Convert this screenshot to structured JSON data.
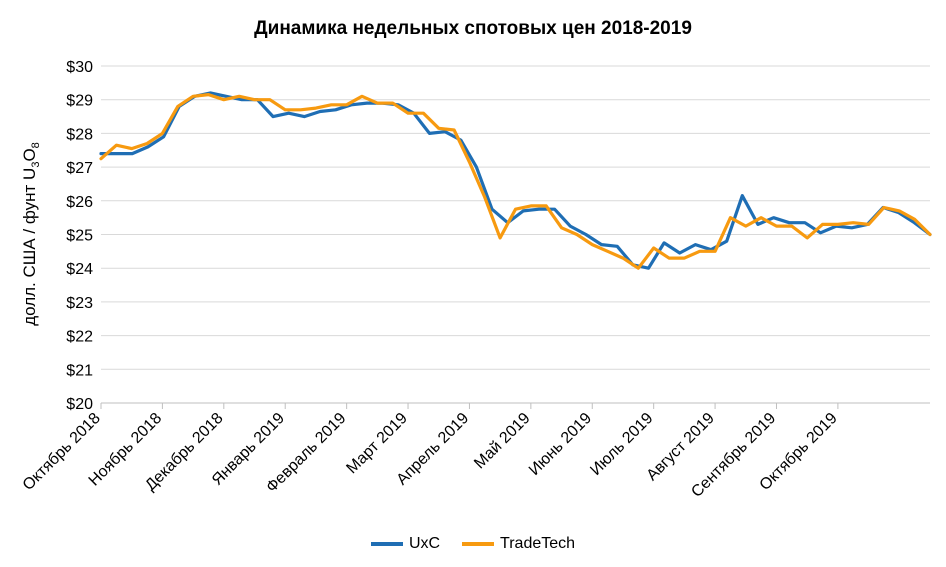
{
  "chart_data": {
    "type": "line",
    "title": "Динамика недельных спотовых цен 2018-2019",
    "ylabel": "долл. США / фунт U",
    "ylabel_sub1": "3",
    "ylabel_mid": "O",
    "ylabel_sub2": "8",
    "ylim": [
      20,
      30
    ],
    "yticks": [
      "$20",
      "$21",
      "$22",
      "$23",
      "$24",
      "$25",
      "$26",
      "$27",
      "$28",
      "$29",
      "$30"
    ],
    "xtick_labels": [
      "Октябрь 2018",
      "Ноябрь 2018",
      "Декабрь 2018",
      "Январь 2019",
      "Февраль 2019",
      "Март 2019",
      "Апрель 2019",
      "Май 2019",
      "Июнь 2019",
      "Июль 2019",
      "Август 2019",
      "Сентябрь 2019",
      "Октябрь 2019"
    ],
    "xtick_weeks": [
      0,
      4,
      8,
      12,
      16,
      20,
      24,
      28,
      32,
      36,
      40,
      44,
      48
    ],
    "grid": true,
    "legend_position": "bottom",
    "series": [
      {
        "name": "UxC",
        "color": "#1F6EB4",
        "values": [
          27.4,
          27.4,
          27.4,
          27.6,
          27.9,
          28.8,
          29.1,
          29.2,
          29.1,
          29.0,
          29.0,
          28.5,
          28.6,
          28.5,
          28.65,
          28.7,
          28.85,
          28.9,
          28.9,
          28.85,
          28.6,
          28.0,
          28.05,
          27.8,
          27.0,
          25.75,
          25.35,
          25.7,
          25.75,
          25.75,
          25.25,
          25.0,
          24.7,
          24.65,
          24.1,
          24.0,
          24.75,
          24.45,
          24.7,
          24.55,
          24.8,
          26.15,
          25.3,
          25.5,
          25.35,
          25.35,
          25.05,
          25.25,
          25.2,
          25.3,
          25.8,
          25.65,
          25.35,
          25.0
        ],
        "period": "weekly"
      },
      {
        "name": "TradeTech",
        "color": "#F79A10",
        "values": [
          27.25,
          27.65,
          27.55,
          27.7,
          28.0,
          28.8,
          29.1,
          29.15,
          29.0,
          29.1,
          29.0,
          29.0,
          28.7,
          28.7,
          28.75,
          28.85,
          28.85,
          29.1,
          28.9,
          28.9,
          28.6,
          28.6,
          28.15,
          28.1,
          27.15,
          26.1,
          24.9,
          25.75,
          25.85,
          25.85,
          25.2,
          25.0,
          24.7,
          24.5,
          24.3,
          24.0,
          24.6,
          24.3,
          24.3,
          24.5,
          24.5,
          25.5,
          25.25,
          25.5,
          25.25,
          25.25,
          24.9,
          25.3,
          25.3,
          25.35,
          25.3,
          25.8,
          25.7,
          25.45,
          25.0
        ]
      }
    ]
  }
}
